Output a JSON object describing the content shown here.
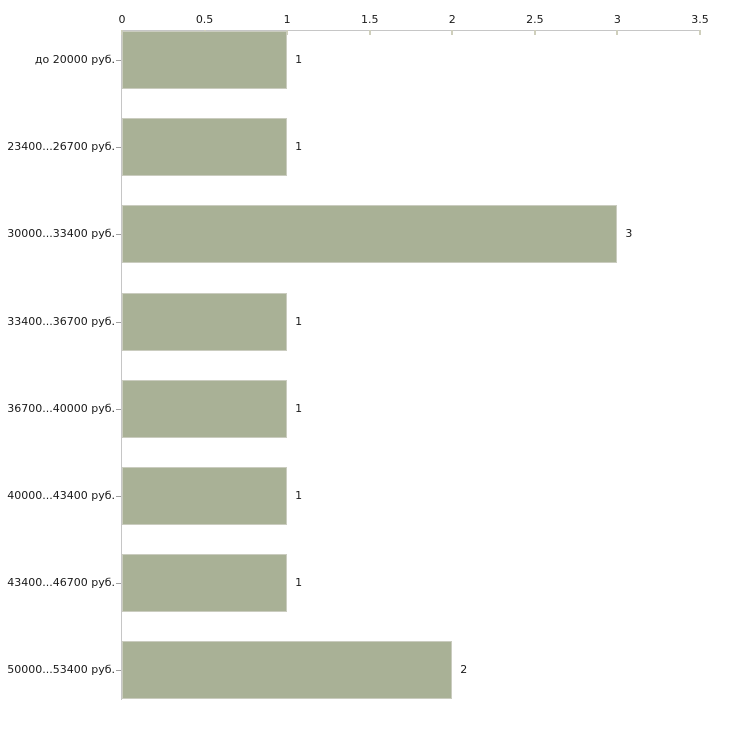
{
  "chart_data": {
    "type": "bar",
    "orientation": "horizontal",
    "title": "",
    "xlabel": "",
    "ylabel": "",
    "categories": [
      "до 20000 руб.",
      "23400...26700 руб.",
      "30000...33400 руб.",
      "33400...36700 руб.",
      "36700...40000 руб.",
      "40000...43400 руб.",
      "43400...46700 руб.",
      "50000...53400 руб."
    ],
    "values": [
      1,
      1,
      3,
      1,
      1,
      1,
      1,
      2
    ],
    "value_labels": [
      "1",
      "1",
      "3",
      "1",
      "1",
      "1",
      "1",
      "2"
    ],
    "x_ticks": [
      0,
      0.5,
      1,
      1.5,
      2,
      2.5,
      3,
      3.5
    ],
    "x_tick_labels": [
      "0",
      "0.5",
      "1",
      "1.5",
      "2",
      "2.5",
      "3",
      "3.5"
    ],
    "xlim": [
      0,
      3.5
    ],
    "grid": false,
    "legend": null,
    "x_axis_position": "top",
    "colors": {
      "bar_fill": "#a9b196",
      "bar_border": "#caccbf",
      "axis_line": "#c6c6c6",
      "tick_mark": "#cfcfbc",
      "category_tick": "#a0a0a0",
      "text": "#1a1a1a"
    }
  }
}
